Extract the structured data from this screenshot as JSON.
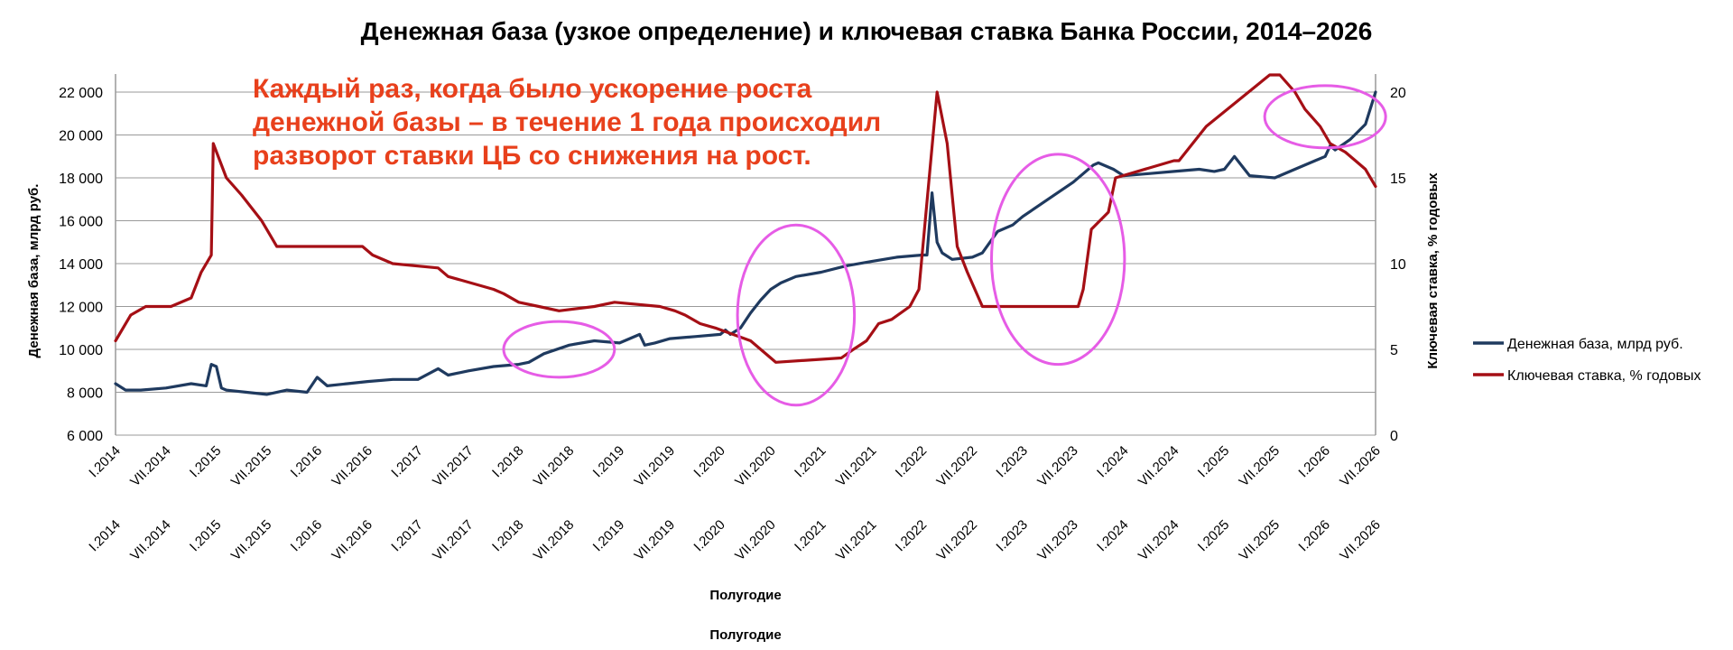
{
  "chart_data": {
    "type": "line",
    "title": "Денежная база (узкое определение) и ключевая ставка Банка России, 2014–2026",
    "annotation": {
      "lines": [
        "Каждый раз, когда было ускорение роста",
        "денежной базы – в течение 1 года происходил",
        "разворот ставки ЦБ со снижения на рост."
      ],
      "color": "#e8401c"
    },
    "xlabel": "Полугодие",
    "xlabel_repeat": "Полугодие",
    "x_range": [
      2014.0,
      2026.5
    ],
    "x_ticks": [
      {
        "x": 2014.0,
        "label": "I.2014"
      },
      {
        "x": 2014.5,
        "label": "VII.2014"
      },
      {
        "x": 2015.0,
        "label": "I.2015"
      },
      {
        "x": 2015.5,
        "label": "VII.2015"
      },
      {
        "x": 2016.0,
        "label": "I.2016"
      },
      {
        "x": 2016.5,
        "label": "VII.2016"
      },
      {
        "x": 2017.0,
        "label": "I.2017"
      },
      {
        "x": 2017.5,
        "label": "VII.2017"
      },
      {
        "x": 2018.0,
        "label": "I.2018"
      },
      {
        "x": 2018.5,
        "label": "VII.2018"
      },
      {
        "x": 2019.0,
        "label": "I.2019"
      },
      {
        "x": 2019.5,
        "label": "VII.2019"
      },
      {
        "x": 2020.0,
        "label": "I.2020"
      },
      {
        "x": 2020.5,
        "label": "VII.2020"
      },
      {
        "x": 2021.0,
        "label": "I.2021"
      },
      {
        "x": 2021.5,
        "label": "VII.2021"
      },
      {
        "x": 2022.0,
        "label": "I.2022"
      },
      {
        "x": 2022.5,
        "label": "VII.2022"
      },
      {
        "x": 2023.0,
        "label": "I.2023"
      },
      {
        "x": 2023.5,
        "label": "VII.2023"
      },
      {
        "x": 2024.0,
        "label": "I.2024"
      },
      {
        "x": 2024.5,
        "label": "VII.2024"
      },
      {
        "x": 2025.0,
        "label": "I.2025"
      },
      {
        "x": 2025.5,
        "label": "VII.2025"
      },
      {
        "x": 2026.0,
        "label": "I.2026"
      },
      {
        "x": 2026.5,
        "label": "VII.2026"
      }
    ],
    "y_left": {
      "label": "Денежная база, млрд руб.",
      "range": [
        6000,
        22000
      ],
      "ticks": [
        {
          "v": 6000,
          "label": "6 000"
        },
        {
          "v": 8000,
          "label": "8 000"
        },
        {
          "v": 10000,
          "label": "10 000"
        },
        {
          "v": 12000,
          "label": "12 000"
        },
        {
          "v": 14000,
          "label": "14 000"
        },
        {
          "v": 16000,
          "label": "16 000"
        },
        {
          "v": 18000,
          "label": "18 000"
        },
        {
          "v": 20000,
          "label": "20 000"
        },
        {
          "v": 22000,
          "label": "22 000"
        }
      ]
    },
    "y_right": {
      "label": "Ключевая ставка, % годовых",
      "range": [
        0,
        20
      ],
      "ticks": [
        {
          "v": 0,
          "label": "0"
        },
        {
          "v": 5,
          "label": "5"
        },
        {
          "v": 10,
          "label": "10"
        },
        {
          "v": 15,
          "label": "15"
        },
        {
          "v": 20,
          "label": "20"
        }
      ]
    },
    "grid": true,
    "legend_position": "right",
    "series": [
      {
        "name": "Денежная база, млрд руб.",
        "axis": "left",
        "color": "#1f3a5f",
        "x": [
          2014.0,
          2014.1,
          2014.25,
          2014.5,
          2014.75,
          2014.9,
          2014.95,
          2015.0,
          2015.05,
          2015.1,
          2015.3,
          2015.5,
          2015.7,
          2015.9,
          2016.0,
          2016.1,
          2016.3,
          2016.5,
          2016.75,
          2017.0,
          2017.2,
          2017.3,
          2017.5,
          2017.75,
          2018.0,
          2018.1,
          2018.25,
          2018.5,
          2018.75,
          2019.0,
          2019.2,
          2019.25,
          2019.35,
          2019.5,
          2019.75,
          2020.0,
          2020.05,
          2020.1,
          2020.2,
          2020.3,
          2020.4,
          2020.5,
          2020.6,
          2020.75,
          2021.0,
          2021.25,
          2021.5,
          2021.75,
          2022.0,
          2022.05,
          2022.1,
          2022.15,
          2022.2,
          2022.3,
          2022.5,
          2022.6,
          2022.75,
          2022.9,
          2023.0,
          2023.25,
          2023.5,
          2023.7,
          2023.75,
          2023.9,
          2024.0,
          2024.25,
          2024.5,
          2024.75,
          2024.9,
          2025.0,
          2025.1,
          2025.25,
          2025.5,
          2025.75,
          2025.9,
          2026.0,
          2026.05,
          2026.1,
          2026.25,
          2026.4,
          2026.5
        ],
        "values": [
          8400,
          8100,
          8100,
          8200,
          8400,
          8300,
          9300,
          9200,
          8200,
          8100,
          8000,
          7900,
          8100,
          8000,
          8700,
          8300,
          8400,
          8500,
          8600,
          8600,
          9100,
          8800,
          9000,
          9200,
          9300,
          9400,
          9800,
          10200,
          10400,
          10300,
          10700,
          10200,
          10300,
          10500,
          10600,
          10700,
          10900,
          10700,
          11000,
          11700,
          12300,
          12800,
          13100,
          13400,
          13600,
          13900,
          14100,
          14300,
          14400,
          14400,
          17300,
          15000,
          14500,
          14200,
          14300,
          14500,
          15500,
          15800,
          16200,
          17000,
          17800,
          18600,
          18700,
          18400,
          18100,
          18200,
          18300,
          18400,
          18300,
          18400,
          19000,
          18100,
          18000,
          18500,
          18800,
          19000,
          19500,
          19300,
          19800,
          20500,
          22000
        ]
      },
      {
        "name": "Ключевая ставка, % годовых",
        "axis": "right",
        "color": "#a50f15",
        "x": [
          2014.0,
          2014.15,
          2014.3,
          2014.55,
          2014.75,
          2014.85,
          2014.95,
          2014.97,
          2015.1,
          2015.25,
          2015.45,
          2015.6,
          2016.45,
          2016.55,
          2016.75,
          2017.2,
          2017.3,
          2017.45,
          2017.75,
          2017.85,
          2018.0,
          2018.2,
          2018.4,
          2018.75,
          2018.95,
          2019.4,
          2019.55,
          2019.65,
          2019.8,
          2019.95,
          2020.3,
          2020.5,
          2020.55,
          2021.2,
          2021.32,
          2021.45,
          2021.57,
          2021.7,
          2021.88,
          2021.97,
          2022.15,
          2022.25,
          2022.3,
          2022.35,
          2022.45,
          2022.6,
          2023.55,
          2023.6,
          2023.68,
          2023.85,
          2023.92,
          2024.5,
          2024.55,
          2024.82,
          2025.45,
          2025.55,
          2025.7,
          2025.8,
          2025.95,
          2026.05,
          2026.2,
          2026.3,
          2026.4,
          2026.5
        ],
        "values": [
          5.5,
          7.0,
          7.5,
          7.5,
          8.0,
          9.5,
          10.5,
          17.0,
          15.0,
          14.0,
          12.5,
          11.0,
          11.0,
          10.5,
          10.0,
          9.75,
          9.25,
          9.0,
          8.5,
          8.25,
          7.75,
          7.5,
          7.25,
          7.5,
          7.75,
          7.5,
          7.25,
          7.0,
          6.5,
          6.25,
          5.5,
          4.5,
          4.25,
          4.5,
          5.0,
          5.5,
          6.5,
          6.75,
          7.5,
          8.5,
          20.0,
          17.0,
          14.0,
          11.0,
          9.5,
          7.5,
          7.5,
          8.5,
          12.0,
          13.0,
          15.0,
          16.0,
          16.0,
          18.0,
          21.0,
          21.0,
          20.0,
          19.0,
          18.0,
          17.0,
          16.5,
          16.0,
          15.5,
          14.5
        ]
      }
    ],
    "highlights": [
      {
        "name": "highlight-2018",
        "cx": 2018.4,
        "cy": 10000,
        "rx": 0.55,
        "ry": 1300
      },
      {
        "name": "highlight-2020",
        "cx": 2020.75,
        "cy": 11600,
        "rx": 0.58,
        "ry": 4200
      },
      {
        "name": "highlight-2023",
        "cx": 2023.35,
        "cy": 14200,
        "rx": 0.66,
        "ry": 4900
      },
      {
        "name": "highlight-2026",
        "cx": 2026.0,
        "cy": 20850,
        "rx": 0.6,
        "ry": 1450
      }
    ],
    "highlight_color": "#e65ce6"
  }
}
